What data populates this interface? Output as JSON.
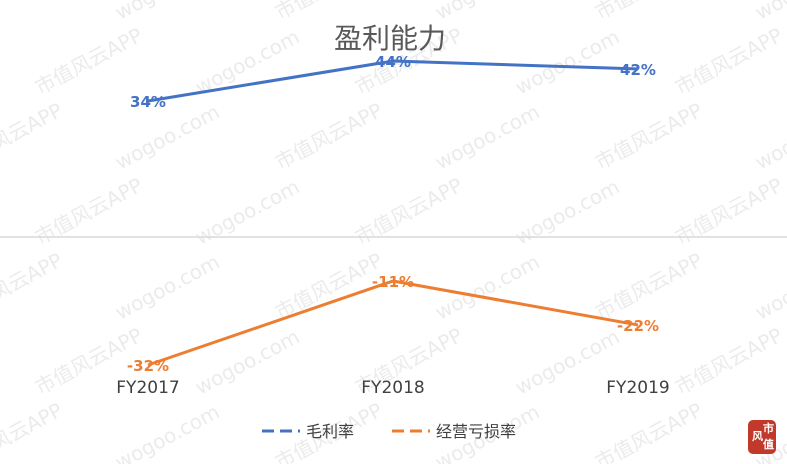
{
  "chart_data": {
    "type": "line",
    "title": "盈利能力",
    "categories": [
      "FY2017",
      "FY2018",
      "FY2019"
    ],
    "series": [
      {
        "name": "毛利率",
        "values": [
          34,
          44,
          42
        ],
        "labels": [
          "34%",
          "44%",
          "42%"
        ],
        "color": "#4472C4"
      },
      {
        "name": "经营亏损率",
        "values": [
          -32,
          -11,
          -22
        ],
        "labels": [
          "-32%",
          "-11%",
          "-22%"
        ],
        "color": "#ED7D31"
      }
    ],
    "ylim": [
      -45,
      55
    ],
    "grid": false,
    "legend": "bottom",
    "axis_color": "#d9d9d9"
  },
  "watermarks": [
    "市值风云APP",
    "wogoo.com"
  ],
  "seal": {
    "chars": [
      "风",
      "市",
      "值"
    ],
    "color": "#c0392b"
  }
}
